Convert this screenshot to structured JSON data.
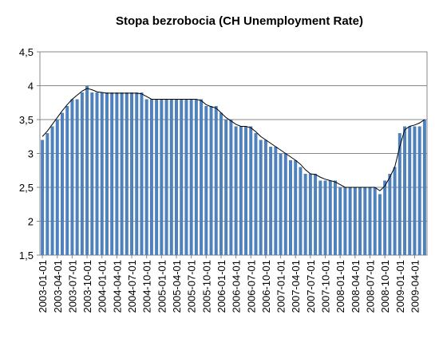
{
  "chart_data": {
    "type": "bar",
    "title": "Stopa bezrobocia (CH Unemployment Rate)",
    "categories": [
      "2003-01-01",
      null,
      null,
      "2003-04-01",
      null,
      null,
      "2003-07-01",
      null,
      null,
      "2003-10-01",
      null,
      null,
      "2004-01-01",
      null,
      null,
      "2004-04-01",
      null,
      null,
      "2004-07-01",
      null,
      null,
      "2004-10-01",
      null,
      null,
      "2005-01-01",
      null,
      null,
      "2005-04-01",
      null,
      null,
      "2005-07-01",
      null,
      null,
      "2005-10-01",
      null,
      null,
      "2006-01-01",
      null,
      null,
      "2006-04-01",
      null,
      null,
      "2006-07-01",
      null,
      null,
      "2006-10-01",
      null,
      null,
      "2007-01-01",
      null,
      null,
      "2007-04-01",
      null,
      null,
      "2007-07-01",
      null,
      null,
      "2007-10-01",
      null,
      null,
      "2008-01-01",
      null,
      null,
      "2008-04-01",
      null,
      null,
      "2008-07-01",
      null,
      null,
      "2008-10-01",
      null,
      null,
      "2009-01-01",
      null,
      null,
      "2009-04-01",
      null,
      null
    ],
    "series": [
      {
        "type": "bar",
        "color": "#4f81bd",
        "values": [
          3.2,
          3.3,
          3.4,
          3.5,
          3.6,
          3.7,
          3.8,
          3.8,
          3.9,
          4.0,
          3.9,
          3.9,
          3.9,
          3.9,
          3.9,
          3.9,
          3.9,
          3.9,
          3.9,
          3.9,
          3.9,
          3.8,
          3.8,
          3.8,
          3.8,
          3.8,
          3.8,
          3.8,
          3.8,
          3.8,
          3.8,
          3.8,
          3.8,
          3.7,
          3.7,
          3.7,
          3.6,
          3.5,
          3.5,
          3.4,
          3.4,
          3.4,
          3.4,
          3.3,
          3.2,
          3.2,
          3.1,
          3.1,
          3.0,
          3.0,
          2.9,
          2.9,
          2.8,
          2.7,
          2.7,
          2.7,
          2.6,
          2.6,
          2.6,
          2.6,
          2.5,
          2.5,
          2.5,
          2.5,
          2.5,
          2.5,
          2.5,
          2.5,
          2.4,
          2.6,
          2.7,
          2.8,
          3.3,
          3.4,
          3.4,
          3.4,
          3.4,
          3.5
        ]
      },
      {
        "type": "line",
        "color": "#000000",
        "values": [
          3.25,
          3.33,
          3.43,
          3.53,
          3.63,
          3.72,
          3.8,
          3.86,
          3.92,
          3.96,
          3.94,
          3.91,
          3.9,
          3.89,
          3.89,
          3.89,
          3.89,
          3.89,
          3.89,
          3.89,
          3.88,
          3.84,
          3.8,
          3.8,
          3.8,
          3.8,
          3.8,
          3.8,
          3.8,
          3.8,
          3.8,
          3.8,
          3.78,
          3.72,
          3.69,
          3.67,
          3.6,
          3.53,
          3.48,
          3.43,
          3.4,
          3.4,
          3.38,
          3.32,
          3.25,
          3.2,
          3.15,
          3.1,
          3.05,
          3.0,
          2.95,
          2.9,
          2.84,
          2.76,
          2.7,
          2.69,
          2.65,
          2.62,
          2.6,
          2.58,
          2.54,
          2.5,
          2.5,
          2.5,
          2.5,
          2.5,
          2.5,
          2.5,
          2.45,
          2.52,
          2.65,
          2.8,
          3.1,
          3.35,
          3.4,
          3.42,
          3.45,
          3.5
        ]
      }
    ],
    "ylim": [
      1.5,
      4.5
    ],
    "yticks": [
      {
        "value": 1.5,
        "label": "1,5"
      },
      2,
      {
        "value": 2.5,
        "label": "2,5"
      },
      3,
      {
        "value": 3.5,
        "label": "3,5"
      },
      4,
      {
        "value": 4.5,
        "label": "4,5"
      }
    ],
    "grid": true
  }
}
